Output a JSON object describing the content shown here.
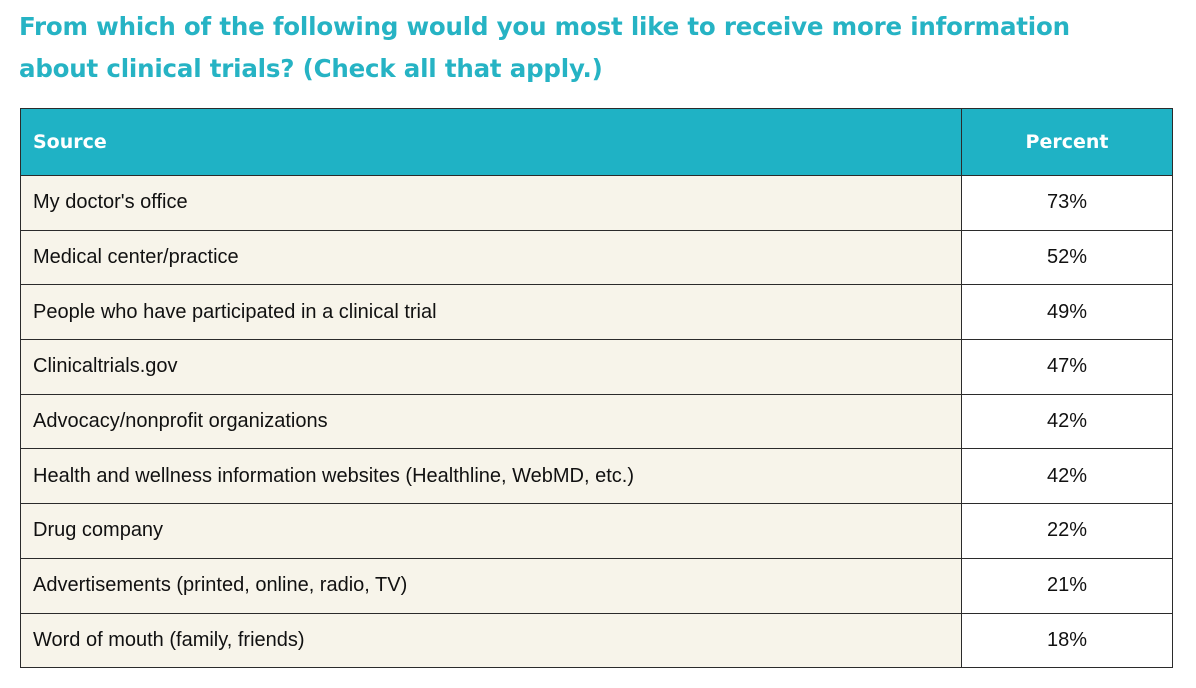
{
  "title": {
    "line1": "From which of the following would you most like to receive more information",
    "line2": "about clinical trials? (Check all that apply.)"
  },
  "table": {
    "headers": {
      "source": "Source",
      "percent": "Percent"
    },
    "rows": [
      {
        "source": "My doctor's office",
        "percent": "73%"
      },
      {
        "source": "Medical center/practice",
        "percent": "52%"
      },
      {
        "source": "People who have participated in a clinical trial",
        "percent": "49%"
      },
      {
        "source": "Clinicaltrials.gov",
        "percent": "47%"
      },
      {
        "source": "Advocacy/nonprofit organizations",
        "percent": "42%"
      },
      {
        "source": "Health and wellness information websites (Healthline, WebMD, etc.)",
        "percent": "42%"
      },
      {
        "source": "Drug company",
        "percent": "22%"
      },
      {
        "source": "Advertisements (printed, online, radio, TV)",
        "percent": "21%"
      },
      {
        "source": "Word of mouth (family, friends)",
        "percent": "18%"
      }
    ]
  },
  "colors": {
    "accent": "#26b3c4",
    "header_bg": "#1fb2c5",
    "row_bg": "#f7f4ea",
    "border": "#2b2b2b"
  }
}
